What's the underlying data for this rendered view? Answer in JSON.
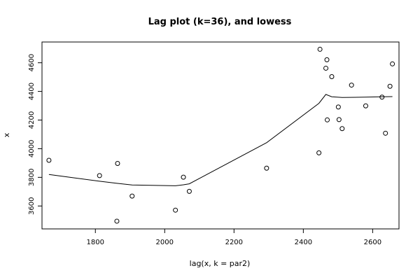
{
  "chart_data": {
    "type": "scatter",
    "title": "Lag plot (k=36), and lowess",
    "xlabel": "lag(x, k = par2)",
    "ylabel": "x",
    "xlim": [
      1646,
      2676
    ],
    "ylim": [
      3440,
      4745
    ],
    "x_ticks": [
      1800,
      2000,
      2200,
      2400,
      2600
    ],
    "y_ticks": [
      3600,
      3800,
      4000,
      4200,
      4400,
      4600
    ],
    "grid": false,
    "points": [
      {
        "x": 1666,
        "y": 3919
      },
      {
        "x": 1812,
        "y": 3812
      },
      {
        "x": 1864,
        "y": 3897
      },
      {
        "x": 1862,
        "y": 3494
      },
      {
        "x": 1906,
        "y": 3669
      },
      {
        "x": 2031,
        "y": 3571
      },
      {
        "x": 2054,
        "y": 3801
      },
      {
        "x": 2071,
        "y": 3702
      },
      {
        "x": 2294,
        "y": 3864
      },
      {
        "x": 2445,
        "y": 3971
      },
      {
        "x": 2448,
        "y": 4694
      },
      {
        "x": 2465,
        "y": 4562
      },
      {
        "x": 2468,
        "y": 4621
      },
      {
        "x": 2469,
        "y": 4201
      },
      {
        "x": 2482,
        "y": 4503
      },
      {
        "x": 2501,
        "y": 4291
      },
      {
        "x": 2503,
        "y": 4203
      },
      {
        "x": 2512,
        "y": 4140
      },
      {
        "x": 2539,
        "y": 4444
      },
      {
        "x": 2580,
        "y": 4299
      },
      {
        "x": 2627,
        "y": 4360
      },
      {
        "x": 2637,
        "y": 4108
      },
      {
        "x": 2650,
        "y": 4436
      },
      {
        "x": 2657,
        "y": 4592
      }
    ],
    "lowess": [
      {
        "x": 1666,
        "y": 3820
      },
      {
        "x": 1812,
        "y": 3773
      },
      {
        "x": 1862,
        "y": 3758
      },
      {
        "x": 1906,
        "y": 3747
      },
      {
        "x": 2031,
        "y": 3741
      },
      {
        "x": 2054,
        "y": 3748
      },
      {
        "x": 2071,
        "y": 3755
      },
      {
        "x": 2294,
        "y": 4042
      },
      {
        "x": 2445,
        "y": 4317
      },
      {
        "x": 2465,
        "y": 4379
      },
      {
        "x": 2482,
        "y": 4363
      },
      {
        "x": 2512,
        "y": 4358
      },
      {
        "x": 2580,
        "y": 4360
      },
      {
        "x": 2627,
        "y": 4363
      },
      {
        "x": 2657,
        "y": 4364
      }
    ]
  }
}
